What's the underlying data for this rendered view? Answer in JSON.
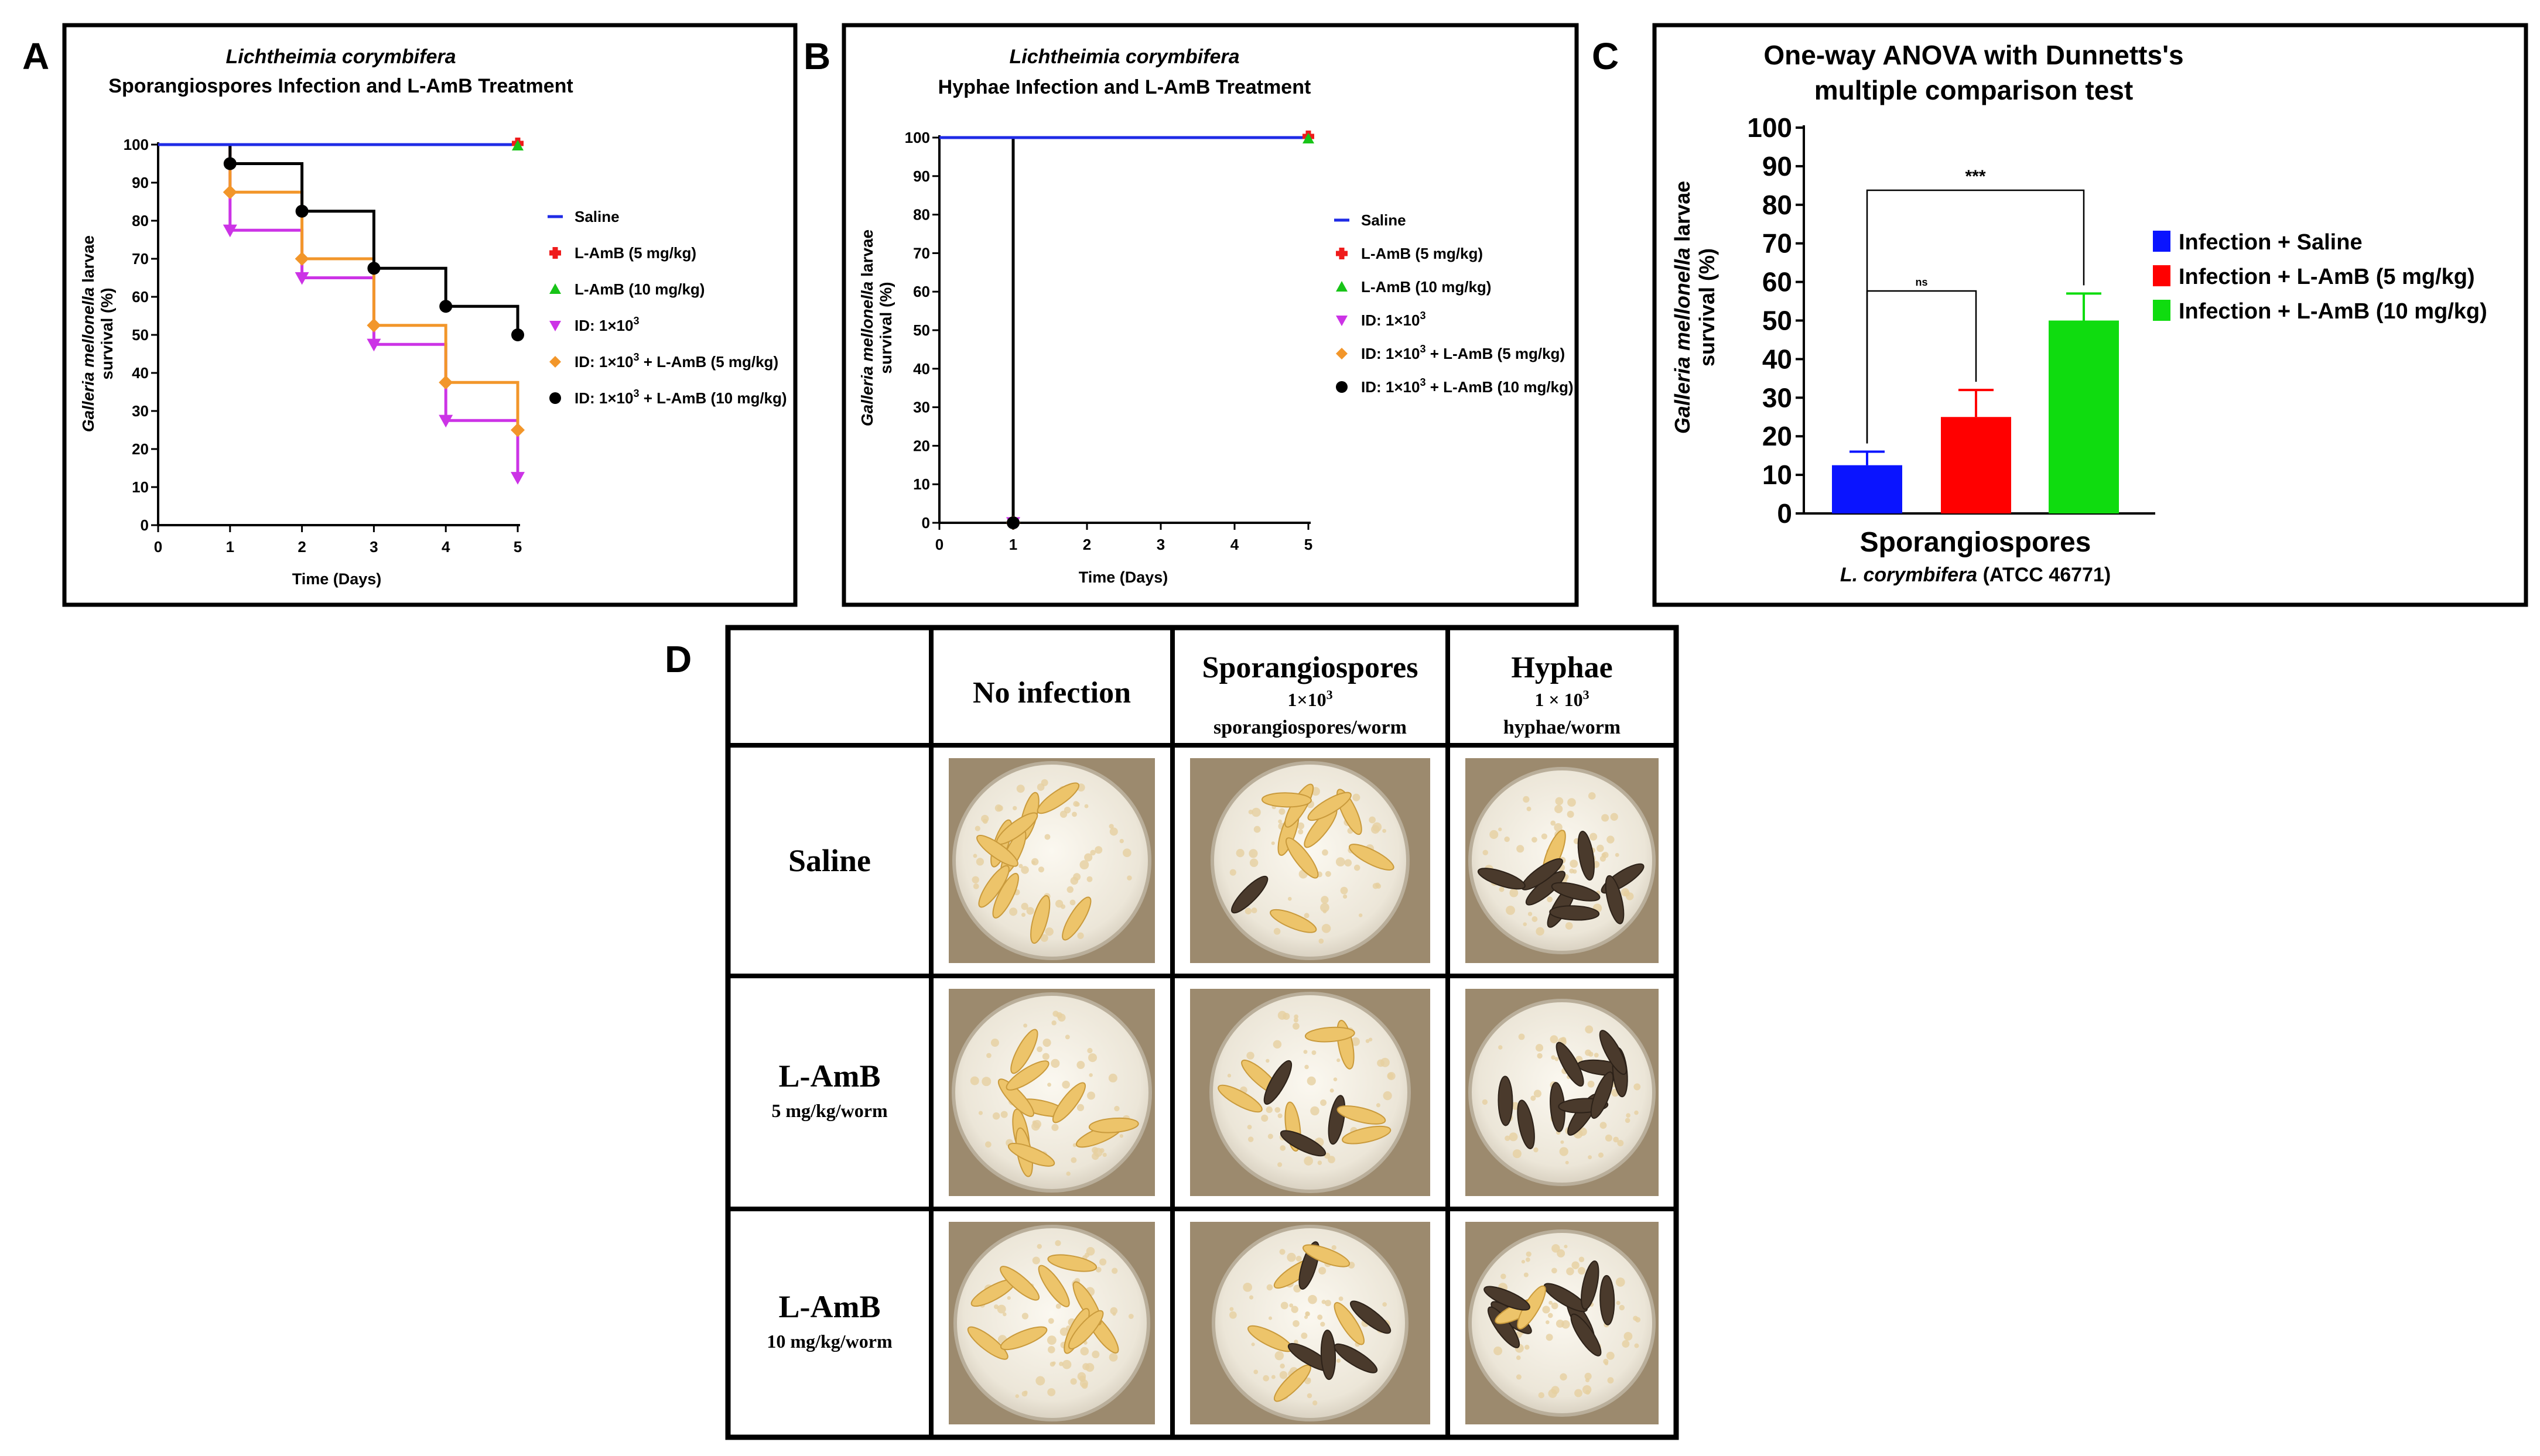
{
  "panel_letters": {
    "a": "A",
    "b": "B",
    "c": "C",
    "d": "D"
  },
  "colors": {
    "saline": "#1f2be6",
    "lamb5": "#ef1b1b",
    "lamb10": "#18c418",
    "id": "#cc33e6",
    "id_lamb5": "#f2962a",
    "id_lamb10": "#000000",
    "bar_blue": "#0a14ff",
    "bar_red": "#ff0000",
    "bar_green": "#0fdc0f"
  },
  "chart_data": [
    {
      "panel": "A",
      "type": "line",
      "step": true,
      "title": "Lichtheimia corymbifera",
      "subtitle": "Sporangiospores Infection and L-AmB Treatment",
      "xlabel": "Time (Days)",
      "ylabel_italic": "Galleria mellonella",
      "ylabel_rest": "larvae",
      "ylabel_line2": "survival (%)",
      "xlim": [
        0,
        5
      ],
      "ylim": [
        0,
        100
      ],
      "xticks": [
        "0",
        "1",
        "2",
        "3",
        "4",
        "5"
      ],
      "yticks": [
        "0",
        "10",
        "20",
        "30",
        "40",
        "50",
        "60",
        "70",
        "80",
        "90",
        "100"
      ],
      "series": [
        {
          "name": "Saline",
          "color": "#1f2be6",
          "marker": "line",
          "x": [
            0,
            5
          ],
          "values": [
            100,
            100
          ]
        },
        {
          "name": "L-AmB (5 mg/kg)",
          "color": "#ef1b1b",
          "marker": "plus",
          "x": [
            0,
            5
          ],
          "values": [
            100,
            100
          ]
        },
        {
          "name": "L-AmB (10 mg/kg)",
          "color": "#18c418",
          "marker": "triangle",
          "x": [
            0,
            5
          ],
          "values": [
            100,
            100
          ]
        },
        {
          "name": "ID: 1×10",
          "sup": "3",
          "suffix": "",
          "color": "#cc33e6",
          "marker": "triangle-down",
          "x": [
            0,
            1,
            2,
            3,
            4,
            5
          ],
          "values": [
            100,
            77.5,
            65,
            47.5,
            27.5,
            12.5
          ]
        },
        {
          "name": "ID: 1×10",
          "sup": "3",
          "suffix": " + L-AmB (5 mg/kg)",
          "color": "#f2962a",
          "marker": "diamond",
          "x": [
            0,
            1,
            2,
            3,
            4,
            5
          ],
          "values": [
            100,
            87.5,
            70,
            52.5,
            37.5,
            25
          ]
        },
        {
          "name": "ID: 1×10",
          "sup": "3",
          "suffix": " + L-AmB (10 mg/kg)",
          "color": "#000000",
          "marker": "circle",
          "x": [
            0,
            1,
            2,
            3,
            4,
            5
          ],
          "values": [
            100,
            95,
            82.5,
            67.5,
            57.5,
            50
          ]
        }
      ]
    },
    {
      "panel": "B",
      "type": "line",
      "step": true,
      "title": "Lichtheimia corymbifera",
      "subtitle": "Hyphae Infection and L-AmB Treatment",
      "xlabel": "Time (Days)",
      "ylabel_italic": "Galleria mellonella",
      "ylabel_rest": "larvae",
      "ylabel_line2": "survival (%)",
      "xlim": [
        0,
        5
      ],
      "ylim": [
        0,
        100
      ],
      "xticks": [
        "0",
        "1",
        "2",
        "3",
        "4",
        "5"
      ],
      "yticks": [
        "0",
        "10",
        "20",
        "30",
        "40",
        "50",
        "60",
        "70",
        "80",
        "90",
        "100"
      ],
      "series": [
        {
          "name": "Saline",
          "color": "#1f2be6",
          "marker": "line",
          "x": [
            0,
            5
          ],
          "values": [
            100,
            100
          ]
        },
        {
          "name": "L-AmB (5 mg/kg)",
          "color": "#ef1b1b",
          "marker": "plus",
          "x": [
            0,
            5
          ],
          "values": [
            100,
            100
          ]
        },
        {
          "name": "L-AmB (10 mg/kg)",
          "color": "#18c418",
          "marker": "triangle",
          "x": [
            0,
            5
          ],
          "values": [
            100,
            100
          ]
        },
        {
          "name": "ID: 1×10",
          "sup": "3",
          "suffix": "",
          "color": "#cc33e6",
          "marker": "triangle-down",
          "x": [
            0,
            1
          ],
          "values": [
            100,
            0
          ]
        },
        {
          "name": "ID: 1×10",
          "sup": "3",
          "suffix": " + L-AmB (5 mg/kg)",
          "color": "#f2962a",
          "marker": "diamond",
          "x": [
            0,
            1
          ],
          "values": [
            100,
            0
          ]
        },
        {
          "name": "ID: 1×10",
          "sup": "3",
          "suffix": " + L-AmB (10 mg/kg)",
          "color": "#000000",
          "marker": "circle",
          "x": [
            0,
            1
          ],
          "values": [
            100,
            0
          ]
        }
      ]
    },
    {
      "panel": "C",
      "type": "bar",
      "title_line1": "One-way ANOVA with Dunnetts's",
      "title_line2": "multiple comparison test",
      "ylabel_italic": "Galleria mellonella",
      "ylabel_rest": "larvae",
      "ylabel_line2": "survival (%)",
      "xlabel": "Sporangiospores",
      "xsub_italic": "L. corymbifera",
      "xsub_rest": "(ATCC 46771)",
      "ylim": [
        0,
        100
      ],
      "yticks": [
        "0",
        "10",
        "20",
        "30",
        "40",
        "50",
        "60",
        "70",
        "80",
        "90",
        "100"
      ],
      "series": [
        {
          "name": "Infection + Saline",
          "color": "#0a14ff",
          "value": 12.5,
          "err": 3.5
        },
        {
          "name": "Infection + L-AmB (5 mg/kg)",
          "color": "#ff0000",
          "value": 25,
          "err": 7
        },
        {
          "name": "Infection + L-AmB (10 mg/kg)",
          "color": "#0fdc0f",
          "value": 50,
          "err": 7
        }
      ],
      "annotations": [
        {
          "from": 0,
          "to": 1,
          "label": "ns"
        },
        {
          "from": 0,
          "to": 2,
          "label": "***"
        }
      ]
    }
  ],
  "panel_d": {
    "columns": [
      {
        "title": "No infection",
        "line2": "",
        "line3": ""
      },
      {
        "title": "Sporangiospores",
        "line2": "1×10",
        "sup": "3",
        "line3": "sporangiospores/worm"
      },
      {
        "title": "Hyphae",
        "line2": "1 × 10",
        "sup": "3",
        "line3": "hyphae/worm"
      }
    ],
    "rows": [
      {
        "title": "Saline",
        "sub": ""
      },
      {
        "title": "L-AmB",
        "sub": "5 mg/kg/worm"
      },
      {
        "title": "L-AmB",
        "sub": "10 mg/kg/worm"
      }
    ],
    "photos": [
      [
        "healthy-larvae-dish",
        "few-dark-larvae-dish",
        "dark-larvae-dish"
      ],
      [
        "healthy-larvae-dish",
        "few-dark-larvae-dish",
        "dark-larvae-dish"
      ],
      [
        "healthy-larvae-dish",
        "few-dark-larvae-dish",
        "dark-larvae-dish"
      ]
    ]
  }
}
